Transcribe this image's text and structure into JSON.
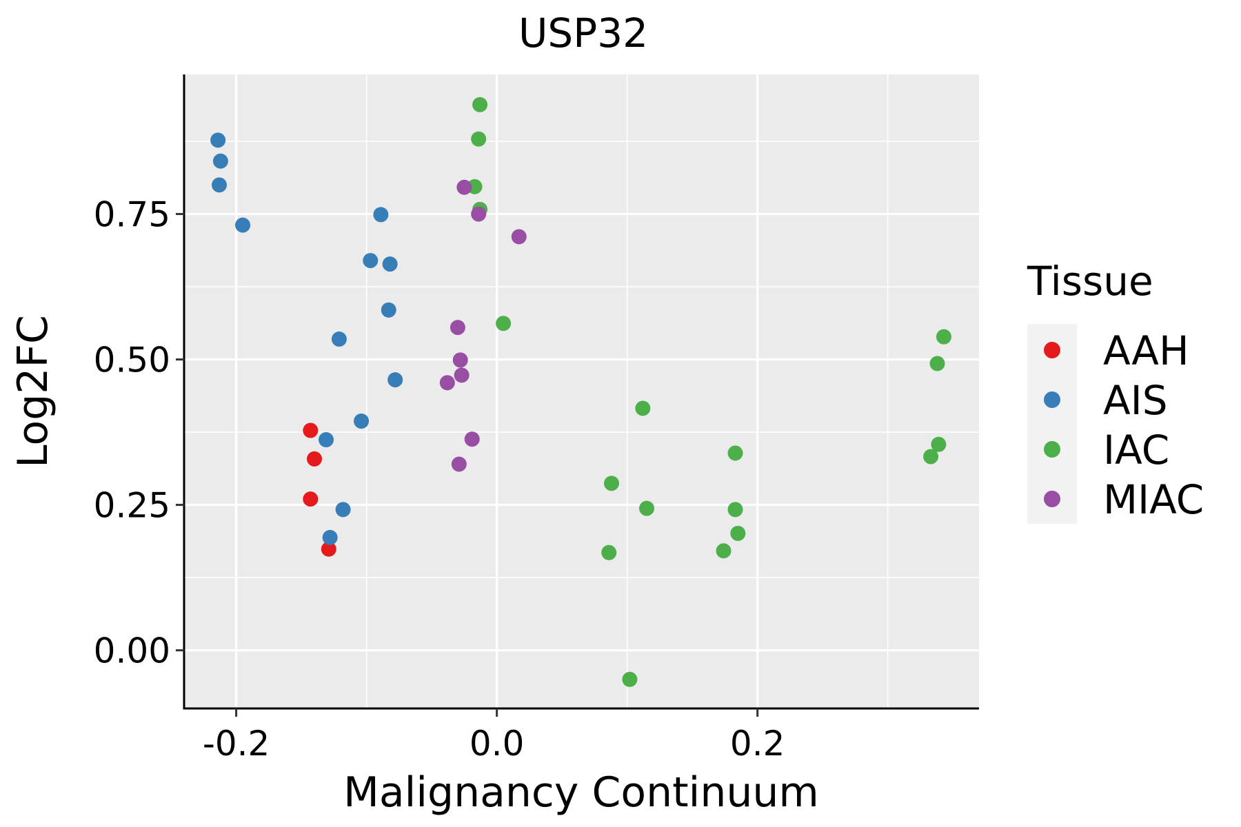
{
  "chart_data": {
    "type": "scatter",
    "title": "USP32",
    "xlabel": "Malignancy Continuum",
    "ylabel": "Log2FC",
    "xlim": [
      -0.24,
      0.37
    ],
    "ylim": [
      -0.1,
      0.99
    ],
    "x_ticks": [
      -0.2,
      0.0,
      0.2
    ],
    "x_tick_labels": [
      "-0.2",
      "0.0",
      "0.2"
    ],
    "y_ticks": [
      0.0,
      0.25,
      0.5,
      0.75
    ],
    "y_tick_labels": [
      "0.00",
      "0.25",
      "0.50",
      "0.75"
    ],
    "grid": true,
    "legend": {
      "title": "Tissue",
      "position": "right",
      "entries": [
        "AAH",
        "AIS",
        "IAC",
        "MIAC"
      ]
    },
    "colors": {
      "AAH": "#E41A1C",
      "AIS": "#377EB8",
      "IAC": "#4DAF4A",
      "MIAC": "#984EA3",
      "panel": "#EBEBEB",
      "grid": "#FFFFFF"
    },
    "series": [
      {
        "name": "AAH",
        "points": [
          [
            -0.143,
            0.378
          ],
          [
            -0.14,
            0.329
          ],
          [
            -0.143,
            0.26
          ],
          [
            -0.129,
            0.174
          ]
        ]
      },
      {
        "name": "AIS",
        "points": [
          [
            -0.214,
            0.877
          ],
          [
            -0.212,
            0.841
          ],
          [
            -0.213,
            0.8
          ],
          [
            -0.195,
            0.731
          ],
          [
            -0.089,
            0.749
          ],
          [
            -0.097,
            0.67
          ],
          [
            -0.082,
            0.664
          ],
          [
            -0.083,
            0.585
          ],
          [
            -0.121,
            0.535
          ],
          [
            -0.078,
            0.465
          ],
          [
            -0.104,
            0.394
          ],
          [
            -0.131,
            0.362
          ],
          [
            -0.118,
            0.242
          ],
          [
            -0.128,
            0.194
          ]
        ]
      },
      {
        "name": "IAC",
        "points": [
          [
            -0.013,
            0.938
          ],
          [
            -0.014,
            0.879
          ],
          [
            -0.017,
            0.797
          ],
          [
            -0.013,
            0.758
          ],
          [
            0.005,
            0.562
          ],
          [
            0.112,
            0.416
          ],
          [
            0.183,
            0.339
          ],
          [
            0.088,
            0.287
          ],
          [
            0.115,
            0.244
          ],
          [
            0.183,
            0.242
          ],
          [
            0.185,
            0.201
          ],
          [
            0.174,
            0.171
          ],
          [
            0.086,
            0.168
          ],
          [
            0.102,
            -0.05
          ],
          [
            0.343,
            0.539
          ],
          [
            0.338,
            0.493
          ],
          [
            0.339,
            0.354
          ],
          [
            0.333,
            0.333
          ]
        ]
      },
      {
        "name": "MIAC",
        "points": [
          [
            -0.025,
            0.796
          ],
          [
            -0.014,
            0.75
          ],
          [
            0.017,
            0.711
          ],
          [
            -0.03,
            0.555
          ],
          [
            -0.028,
            0.499
          ],
          [
            -0.027,
            0.473
          ],
          [
            -0.038,
            0.46
          ],
          [
            -0.019,
            0.363
          ],
          [
            -0.029,
            0.32
          ]
        ]
      }
    ]
  }
}
